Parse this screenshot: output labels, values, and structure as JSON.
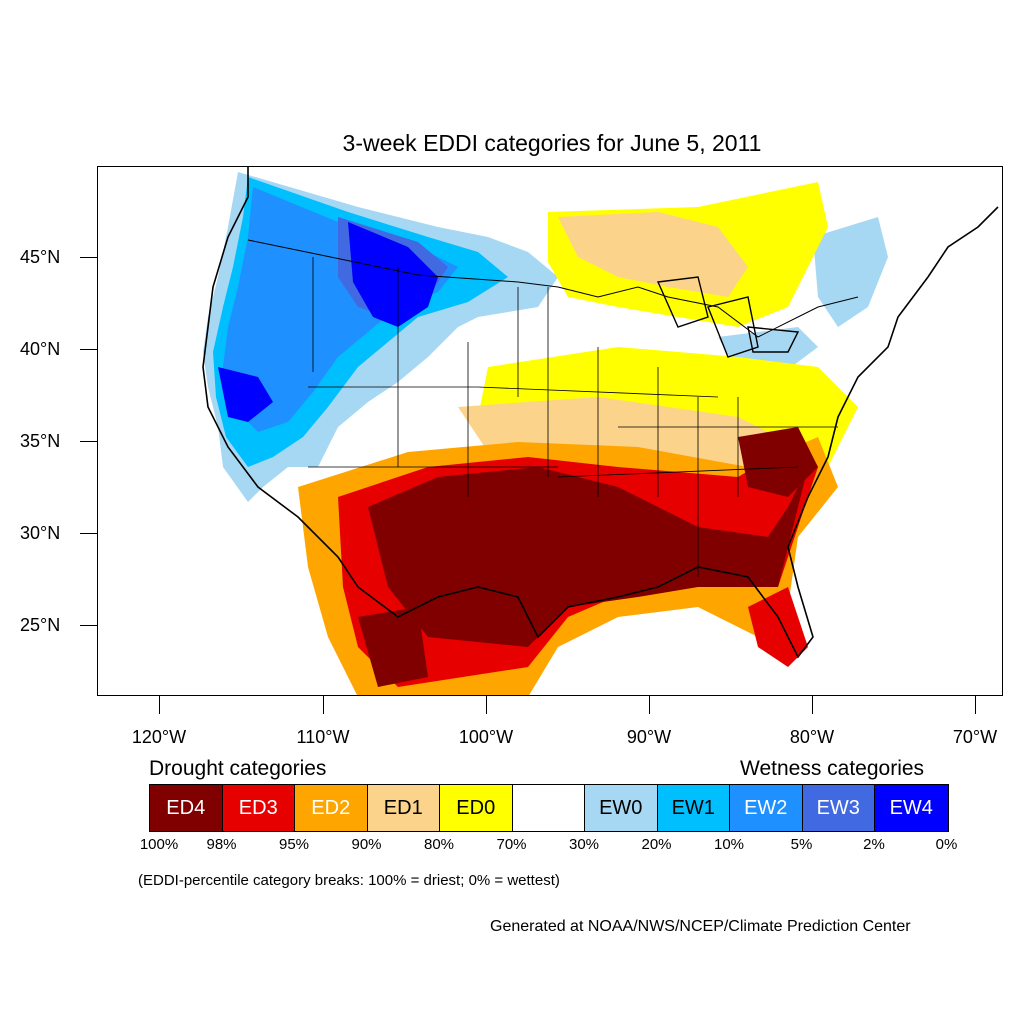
{
  "title": "3-week EDDI categories for June 5, 2011",
  "lat_labels": [
    "45°N",
    "40°N",
    "35°N",
    "30°N",
    "25°N"
  ],
  "lon_labels": [
    "120°W",
    "110°W",
    "100°W",
    "90°W",
    "80°W",
    "70°W"
  ],
  "legend": {
    "drought_heading": "Drought categories",
    "wetness_heading": "Wetness categories",
    "categories": [
      {
        "label": "ED4",
        "color": "#800000",
        "text_color": "#ffffff"
      },
      {
        "label": "ED3",
        "color": "#e60000",
        "text_color": "#ffffff"
      },
      {
        "label": "ED2",
        "color": "#ffa500",
        "text_color": "#ffffff"
      },
      {
        "label": "ED1",
        "color": "#fcd38a",
        "text_color": "#000000"
      },
      {
        "label": "ED0",
        "color": "#ffff00",
        "text_color": "#000000"
      },
      {
        "label": "",
        "color": "#ffffff",
        "text_color": "#000000"
      },
      {
        "label": "EW0",
        "color": "#a6d7f3",
        "text_color": "#000000"
      },
      {
        "label": "EW1",
        "color": "#00bfff",
        "text_color": "#000000"
      },
      {
        "label": "EW2",
        "color": "#1e90ff",
        "text_color": "#ffffff"
      },
      {
        "label": "EW3",
        "color": "#4169e1",
        "text_color": "#ffffff"
      },
      {
        "label": "EW4",
        "color": "#0000ff",
        "text_color": "#ffffff"
      }
    ],
    "breaks": [
      "100%",
      "98%",
      "95%",
      "90%",
      "80%",
      "70%",
      "30%",
      "20%",
      "10%",
      "5%",
      "2%",
      "0%"
    ]
  },
  "note": "(EDDI-percentile category breaks: 100% = driest; 0% = wettest)",
  "credit": "Generated at NOAA/NWS/NCEP/Climate Prediction Center"
}
